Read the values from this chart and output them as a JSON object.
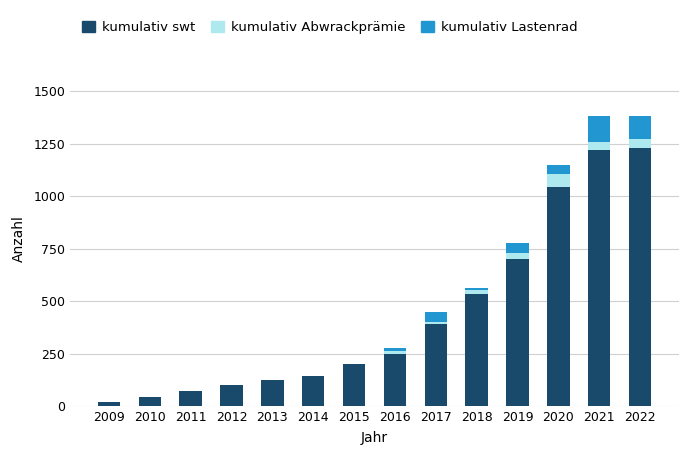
{
  "years": [
    2009,
    2010,
    2011,
    2012,
    2013,
    2014,
    2015,
    2016,
    2017,
    2018,
    2019,
    2020,
    2021,
    2022
  ],
  "swt": [
    20,
    45,
    75,
    100,
    125,
    145,
    200,
    250,
    390,
    535,
    700,
    1045,
    1220,
    1230
  ],
  "abwrack": [
    0,
    0,
    0,
    0,
    0,
    0,
    0,
    15,
    10,
    20,
    30,
    60,
    40,
    40
  ],
  "lastenrad": [
    0,
    0,
    0,
    0,
    0,
    0,
    0,
    10,
    50,
    10,
    45,
    45,
    120,
    110
  ],
  "color_swt": "#1a4a6b",
  "color_abwrack": "#aee9f0",
  "color_lastenrad": "#2196d0",
  "xlabel": "Jahr",
  "ylabel": "Anzahl",
  "ylim": [
    0,
    1600
  ],
  "yticks": [
    0,
    250,
    500,
    750,
    1000,
    1250,
    1500
  ],
  "legend_labels": [
    "kumulativ swt",
    "kumulativ Abwrackprämie",
    "kumulativ Lastenrad"
  ],
  "bar_width": 0.55,
  "figsize": [
    7.0,
    4.67
  ],
  "dpi": 100,
  "background_color": "#ffffff",
  "grid_color": "#d0d0d0"
}
